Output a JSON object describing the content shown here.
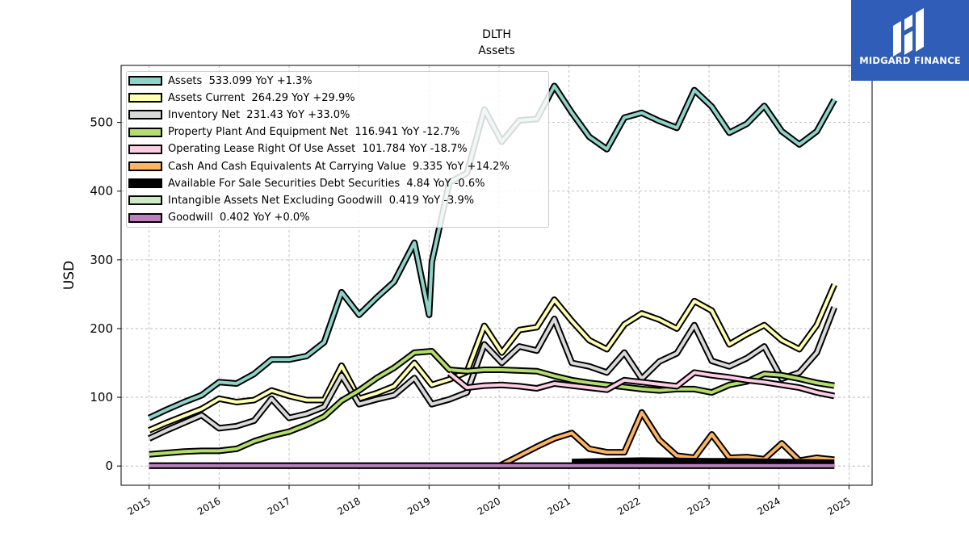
{
  "chart_data": {
    "type": "line",
    "title": "DLTH",
    "subtitle": "Assets",
    "ylabel": "USD",
    "xlabel": "",
    "xlim": [
      2014.6,
      2025.33
    ],
    "ylim": [
      -28,
      583
    ],
    "x_ticks": [
      "2015",
      "2016",
      "2017",
      "2018",
      "2019",
      "2020",
      "2021",
      "2022",
      "2023",
      "2024",
      "2025"
    ],
    "y_ticks": [
      0,
      100,
      200,
      300,
      400,
      500
    ],
    "grid": true,
    "legend_position": "top-left",
    "series": [
      {
        "name": "Assets",
        "legend": "Assets  533.099 YoY +1.3%",
        "color": "#8dd3c7",
        "x": [
          2015.0,
          2015.25,
          2015.5,
          2015.75,
          2016.0,
          2016.25,
          2016.5,
          2016.75,
          2017.0,
          2017.25,
          2017.5,
          2017.75,
          2018.0,
          2018.25,
          2018.5,
          2018.79,
          2019.0,
          2019.04,
          2019.29,
          2019.54,
          2019.79,
          2020.04,
          2020.29,
          2020.54,
          2020.79,
          2021.04,
          2021.29,
          2021.54,
          2021.79,
          2022.04,
          2022.29,
          2022.54,
          2022.79,
          2023.04,
          2023.29,
          2023.54,
          2023.79,
          2024.04,
          2024.29,
          2024.54,
          2024.79
        ],
        "values": [
          70,
          82,
          93,
          103,
          122,
          120,
          134,
          155,
          155,
          160,
          180,
          253,
          220,
          245,
          268,
          325,
          220,
          297,
          413,
          426,
          519,
          472,
          503,
          505,
          553,
          514,
          479,
          461,
          507,
          514,
          502,
          492,
          547,
          523,
          485,
          498,
          524,
          487,
          468,
          487,
          533
        ]
      },
      {
        "name": "Assets Current",
        "legend": "Assets Current  264.29 YoY +29.9%",
        "color": "#ffffb3",
        "x": [
          2015.0,
          2015.25,
          2015.5,
          2015.75,
          2016.0,
          2016.25,
          2016.5,
          2016.75,
          2017.0,
          2017.25,
          2017.5,
          2017.75,
          2018.0,
          2018.25,
          2018.5,
          2018.79,
          2019.04,
          2019.29,
          2019.54,
          2019.79,
          2020.04,
          2020.29,
          2020.54,
          2020.79,
          2021.04,
          2021.29,
          2021.54,
          2021.79,
          2022.04,
          2022.29,
          2022.54,
          2022.79,
          2023.04,
          2023.29,
          2023.54,
          2023.79,
          2024.04,
          2024.29,
          2024.54,
          2024.79
        ],
        "values": [
          52,
          63,
          73,
          83,
          98,
          93,
          96,
          110,
          102,
          96,
          96,
          146,
          98,
          106,
          116,
          150,
          118,
          126,
          137,
          204,
          165,
          198,
          202,
          242,
          211,
          183,
          170,
          206,
          222,
          213,
          200,
          240,
          226,
          177,
          192,
          205,
          183,
          170,
          205,
          264
        ]
      },
      {
        "name": "Inventory Net",
        "legend": "Inventory Net  231.43 YoY +33.0%",
        "color": "#d9d9d9",
        "x": [
          2015.0,
          2015.25,
          2015.5,
          2015.75,
          2016.0,
          2016.25,
          2016.5,
          2016.75,
          2017.0,
          2017.25,
          2017.5,
          2017.75,
          2018.0,
          2018.25,
          2018.5,
          2018.79,
          2019.04,
          2019.29,
          2019.54,
          2019.79,
          2020.04,
          2020.29,
          2020.54,
          2020.79,
          2021.04,
          2021.29,
          2021.54,
          2021.79,
          2022.04,
          2022.29,
          2022.54,
          2022.79,
          2023.04,
          2023.29,
          2023.54,
          2023.79,
          2024.04,
          2024.29,
          2024.54,
          2024.79
        ],
        "values": [
          40,
          52,
          63,
          74,
          55,
          58,
          66,
          98,
          70,
          76,
          86,
          132,
          90,
          97,
          103,
          128,
          90,
          97,
          107,
          177,
          150,
          174,
          168,
          214,
          150,
          145,
          136,
          165,
          127,
          152,
          164,
          205,
          153,
          145,
          157,
          174,
          127,
          136,
          165,
          231
        ]
      },
      {
        "name": "Property Plant And Equipment Net",
        "legend": "Property Plant And Equipment Net  116.941 YoY -12.7%",
        "color": "#b3de69",
        "x": [
          2015.0,
          2015.25,
          2015.5,
          2015.75,
          2016.0,
          2016.25,
          2016.5,
          2016.75,
          2017.0,
          2017.25,
          2017.5,
          2017.75,
          2018.0,
          2018.25,
          2018.5,
          2018.79,
          2019.04,
          2019.29,
          2019.54,
          2019.79,
          2020.04,
          2020.29,
          2020.54,
          2020.79,
          2021.04,
          2021.29,
          2021.54,
          2021.79,
          2022.04,
          2022.29,
          2022.54,
          2022.79,
          2023.04,
          2023.29,
          2023.54,
          2023.79,
          2024.04,
          2024.29,
          2024.54,
          2024.79
        ],
        "values": [
          17,
          19,
          21,
          22,
          22,
          25,
          36,
          44,
          50,
          60,
          72,
          95,
          110,
          128,
          143,
          165,
          167,
          140,
          138,
          140,
          140,
          139,
          138,
          131,
          125,
          121,
          118,
          115,
          112,
          110,
          112,
          112,
          107,
          118,
          123,
          134,
          132,
          127,
          121,
          117
        ]
      },
      {
        "name": "Operating Lease Right Of Use Asset",
        "legend": "Operating Lease Right Of Use Asset  101.784 YoY -18.7%",
        "color": "#fccde5",
        "x": [
          2019.29,
          2019.54,
          2019.79,
          2020.04,
          2020.29,
          2020.54,
          2020.79,
          2021.04,
          2021.29,
          2021.54,
          2021.79,
          2022.04,
          2022.29,
          2022.54,
          2022.79,
          2023.04,
          2023.29,
          2023.54,
          2023.79,
          2024.04,
          2024.29,
          2024.54,
          2024.79
        ],
        "values": [
          135,
          114,
          117,
          118,
          116,
          113,
          120,
          117,
          114,
          111,
          125,
          122,
          119,
          116,
          136,
          132,
          129,
          125,
          122,
          118,
          114,
          107,
          102
        ]
      },
      {
        "name": "Cash And Cash Equivalents At Carrying Value",
        "legend": "Cash And Cash Equivalents At Carrying Value  9.335 YoY +14.2%",
        "color": "#fdb462",
        "x": [
          2020.0,
          2020.29,
          2020.54,
          2020.79,
          2021.04,
          2021.29,
          2021.54,
          2021.79,
          2022.04,
          2022.29,
          2022.54,
          2022.79,
          2023.04,
          2023.29,
          2023.54,
          2023.79,
          2024.04,
          2024.29,
          2024.54,
          2024.79
        ],
        "values": [
          0,
          15,
          28,
          40,
          48,
          25,
          20,
          20,
          78,
          38,
          15,
          12,
          46,
          12,
          13,
          10,
          33,
          8,
          12,
          9.3
        ]
      },
      {
        "name": "Available For Sale Securities Debt Securities",
        "legend": "Available For Sale Securities Debt Securities  4.84 YoY -0.6%",
        "color": "#000000",
        "x": [
          2021.04,
          2022.04,
          2023.04,
          2024.04,
          2024.79
        ],
        "values": [
          6,
          8,
          7,
          6,
          4.8
        ]
      },
      {
        "name": "Intangible Assets Net Excluding Goodwill",
        "legend": "Intangible Assets Net Excluding Goodwill  0.419 YoY -3.9%",
        "color": "#ccebc5",
        "x": [
          2015.0,
          2024.79
        ],
        "values": [
          0.45,
          0.419
        ]
      },
      {
        "name": "Goodwill",
        "legend": "Goodwill  0.402 YoY +0.0%",
        "color": "#bc80bd",
        "x": [
          2015.0,
          2024.79
        ],
        "values": [
          0.402,
          0.402
        ]
      }
    ]
  },
  "logo": {
    "text": "MIDGARD FINANCE",
    "color": "#2f5db7"
  }
}
